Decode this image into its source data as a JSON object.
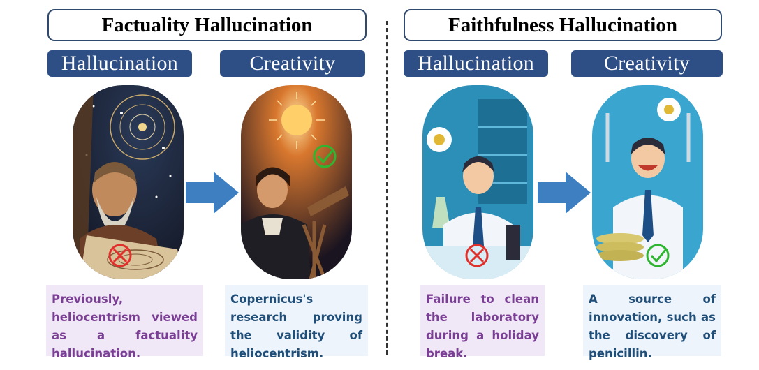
{
  "sections": {
    "factuality": {
      "title": "Factuality Hallucination",
      "hallucination_label": "Hallucination",
      "creativity_label": "Creativity",
      "hallucination_caption": "Previously, heliocentrism viewed as a factuality hallucination.",
      "creativity_caption": "Copernicus's research proving the validity of heliocentrism."
    },
    "faithfulness": {
      "title": "Faithfulness Hallucination",
      "hallucination_label": "Hallucination",
      "creativity_label": "Creativity",
      "hallucination_caption": "Failure to clean the laboratory during a holiday break.",
      "creativity_caption": "A source of innovation, such as the discovery of penicillin."
    }
  },
  "colors": {
    "pill_bg": "#2e4f86",
    "title_border": "#2f4a6e",
    "arrow": "#3d7fc1",
    "wrong_mark": "#e0302c",
    "right_mark": "#2fb52f",
    "caption_purple_text": "#7a3f94",
    "caption_blue_text": "#1f4e79"
  },
  "icons": [
    "wrong-cross-icon",
    "check-mark-icon",
    "right-arrow-icon"
  ]
}
